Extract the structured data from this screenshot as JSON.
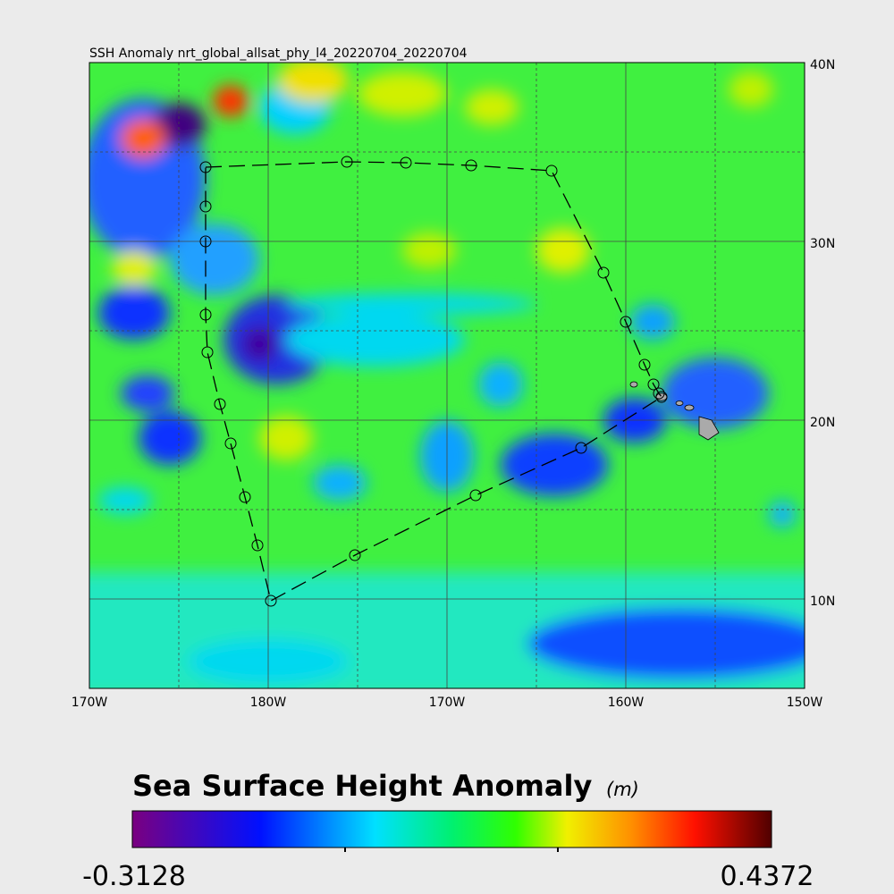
{
  "title": "SSH Anomaly nrt_global_allsat_phy_l4_20220704_20220704",
  "x_labels": [
    "170W",
    "180W",
    "170W",
    "160W",
    "150W"
  ],
  "y_labels": [
    "40N",
    "30N",
    "20N",
    "10N"
  ],
  "colorbar": {
    "title": "Sea Surface Height Anomaly",
    "unit": "(m)",
    "min": -0.3128,
    "max": 0.4372
  }
}
